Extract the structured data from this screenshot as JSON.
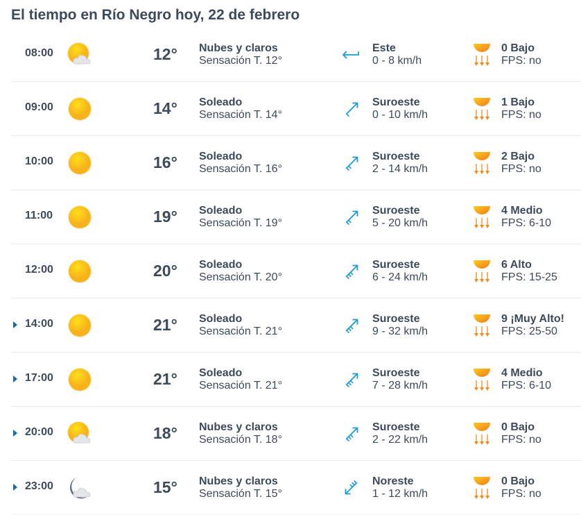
{
  "title": "El tiempo en Río Negro hoy, 22 de febrero",
  "colors": {
    "text": "#3d4a5a",
    "wind_arrow": "#1a9ad6",
    "expand": "#0a6fa8",
    "sun": "#f7b21c",
    "uv_arrows": "#f08a1c"
  },
  "rows": [
    {
      "time": "08:00",
      "expandable": false,
      "icon": "sun-cloud-icon",
      "temp": "12°",
      "desc": "Nubes y claros",
      "feels": "Sensación T. 12°",
      "wind_dir": "Este",
      "wind_speed": "0 - 8 km/h",
      "uv": "0 Bajo",
      "fps": "FPS: no"
    },
    {
      "time": "09:00",
      "expandable": false,
      "icon": "sun-icon",
      "temp": "14°",
      "desc": "Soleado",
      "feels": "Sensación T. 14°",
      "wind_dir": "Suroeste",
      "wind_speed": "0 - 10 km/h",
      "uv": "1 Bajo",
      "fps": "FPS: no"
    },
    {
      "time": "10:00",
      "expandable": false,
      "icon": "sun-icon",
      "temp": "16°",
      "desc": "Soleado",
      "feels": "Sensación T. 16°",
      "wind_dir": "Suroeste",
      "wind_speed": "2 - 14 km/h",
      "uv": "2 Bajo",
      "fps": "FPS: no"
    },
    {
      "time": "11:00",
      "expandable": false,
      "icon": "sun-icon",
      "temp": "19°",
      "desc": "Soleado",
      "feels": "Sensación T. 19°",
      "wind_dir": "Suroeste",
      "wind_speed": "5 - 20 km/h",
      "uv": "4 Medio",
      "fps": "FPS: 6-10"
    },
    {
      "time": "12:00",
      "expandable": false,
      "icon": "sun-icon",
      "temp": "20°",
      "desc": "Soleado",
      "feels": "Sensación T. 20°",
      "wind_dir": "Suroeste",
      "wind_speed": "6 - 24 km/h",
      "uv": "6 Alto",
      "fps": "FPS: 15-25"
    },
    {
      "time": "14:00",
      "expandable": true,
      "icon": "sun-icon",
      "temp": "21°",
      "desc": "Soleado",
      "feels": "Sensación T. 21°",
      "wind_dir": "Suroeste",
      "wind_speed": "9 - 32 km/h",
      "uv": "9 ¡Muy Alto!",
      "fps": "FPS: 25-50"
    },
    {
      "time": "17:00",
      "expandable": true,
      "icon": "sun-icon",
      "temp": "21°",
      "desc": "Soleado",
      "feels": "Sensación T. 21°",
      "wind_dir": "Suroeste",
      "wind_speed": "7 - 28 km/h",
      "uv": "4 Medio",
      "fps": "FPS: 6-10"
    },
    {
      "time": "20:00",
      "expandable": true,
      "icon": "sun-cloud-icon",
      "temp": "18°",
      "desc": "Nubes y claros",
      "feels": "Sensación T. 18°",
      "wind_dir": "Suroeste",
      "wind_speed": "2 - 22 km/h",
      "uv": "0 Bajo",
      "fps": "FPS: no"
    },
    {
      "time": "23:00",
      "expandable": true,
      "icon": "moon-cloud-icon",
      "temp": "15°",
      "desc": "Nubes y claros",
      "feels": "Sensación T. 15°",
      "wind_dir": "Noreste",
      "wind_speed": "1 - 12 km/h",
      "uv": "0 Bajo",
      "fps": "FPS: no"
    }
  ]
}
